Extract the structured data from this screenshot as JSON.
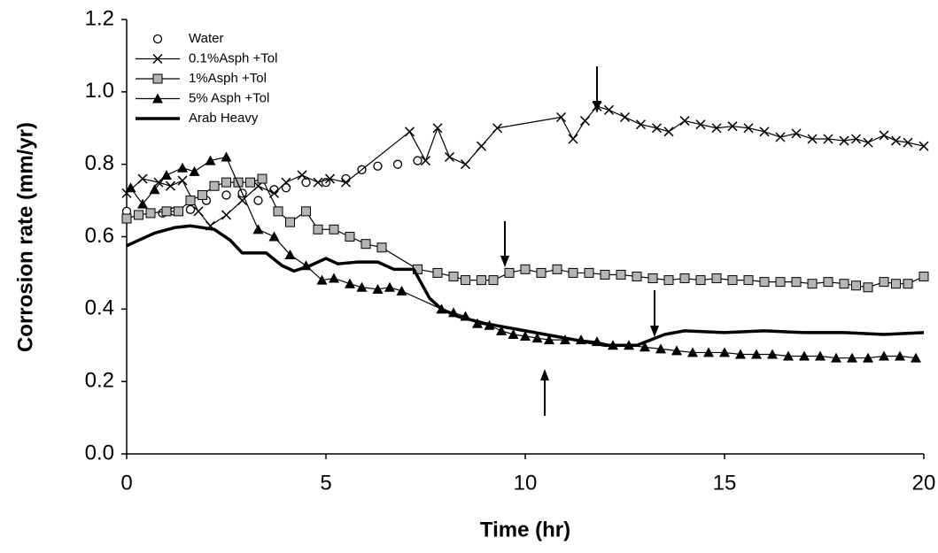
{
  "chart_data": {
    "type": "line",
    "x_label": "Time (hr)",
    "y_label": "Corrosion rate (mm/yr)",
    "xlim": [
      0,
      20
    ],
    "xticks": [
      0,
      5,
      10,
      15,
      20
    ],
    "ylim": [
      0,
      1.2
    ],
    "yticks": [
      {
        "value": 0,
        "label": "0.0"
      },
      0.2,
      0.4,
      0.6,
      0.8,
      {
        "value": 1,
        "label": "1.0"
      },
      1.2
    ],
    "grid": false,
    "legend": "upper left",
    "series": [
      {
        "name": "Water",
        "color": "#000000",
        "marker": "circle-open",
        "line": false,
        "x": [
          0,
          0.3,
          0.6,
          0.9,
          1.2,
          1.6,
          2.0,
          2.5,
          2.9,
          3.3,
          3.7,
          4.0,
          4.5,
          5.0,
          5.5,
          5.9,
          6.3,
          6.8,
          7.3
        ],
        "values": [
          0.67,
          0.66,
          0.665,
          0.665,
          0.67,
          0.675,
          0.7,
          0.715,
          0.72,
          0.7,
          0.73,
          0.735,
          0.75,
          0.75,
          0.76,
          0.785,
          0.795,
          0.8,
          0.81
        ]
      },
      {
        "name": "0.1%Asph +Tol",
        "color": "#000000",
        "marker": "x",
        "line": true,
        "x": [
          0,
          0.4,
          0.8,
          1.1,
          1.4,
          1.8,
          2.1,
          2.5,
          2.9,
          3.3,
          3.7,
          4.0,
          4.4,
          4.8,
          5.1,
          5.5,
          7.1,
          7.5,
          7.8,
          8.1,
          8.5,
          8.9,
          9.3,
          10.9,
          11.2,
          11.5,
          11.8,
          12.1,
          12.5,
          12.9,
          13.3,
          13.6,
          14.0,
          14.4,
          14.8,
          15.2,
          15.6,
          16.0,
          16.4,
          16.8,
          17.2,
          17.6,
          18.0,
          18.3,
          18.6,
          19.0,
          19.3,
          19.6,
          20
        ],
        "values": [
          0.72,
          0.76,
          0.75,
          0.74,
          0.755,
          0.67,
          0.63,
          0.66,
          0.7,
          0.74,
          0.72,
          0.75,
          0.77,
          0.75,
          0.76,
          0.75,
          0.89,
          0.81,
          0.9,
          0.82,
          0.8,
          0.85,
          0.9,
          0.93,
          0.87,
          0.92,
          0.96,
          0.95,
          0.93,
          0.91,
          0.9,
          0.89,
          0.92,
          0.91,
          0.9,
          0.905,
          0.9,
          0.89,
          0.875,
          0.885,
          0.87,
          0.87,
          0.865,
          0.87,
          0.86,
          0.88,
          0.865,
          0.86,
          0.85
        ]
      },
      {
        "name": "1%Asph +Tol",
        "color": "#000000",
        "fill": "#b4b4b4",
        "marker": "square",
        "line": true,
        "x": [
          0,
          0.3,
          0.6,
          1.0,
          1.3,
          1.6,
          1.9,
          2.2,
          2.5,
          2.8,
          3.1,
          3.4,
          3.8,
          4.1,
          4.5,
          4.8,
          5.2,
          5.6,
          6.0,
          6.4,
          7.3,
          7.8,
          8.2,
          8.5,
          8.9,
          9.2,
          9.6,
          10.0,
          10.4,
          10.8,
          11.2,
          11.6,
          12.0,
          12.4,
          12.8,
          13.2,
          13.6,
          14.0,
          14.4,
          14.8,
          15.2,
          15.6,
          16.0,
          16.4,
          16.8,
          17.2,
          17.6,
          18.0,
          18.3,
          18.6,
          19.0,
          19.3,
          19.6,
          20
        ],
        "values": [
          0.65,
          0.66,
          0.665,
          0.67,
          0.67,
          0.7,
          0.715,
          0.74,
          0.75,
          0.75,
          0.75,
          0.76,
          0.67,
          0.64,
          0.67,
          0.62,
          0.62,
          0.6,
          0.58,
          0.57,
          0.51,
          0.5,
          0.49,
          0.48,
          0.48,
          0.48,
          0.5,
          0.51,
          0.5,
          0.51,
          0.5,
          0.5,
          0.495,
          0.495,
          0.49,
          0.485,
          0.48,
          0.485,
          0.48,
          0.485,
          0.48,
          0.48,
          0.475,
          0.475,
          0.475,
          0.47,
          0.475,
          0.47,
          0.465,
          0.46,
          0.475,
          0.47,
          0.47,
          0.49
        ]
      },
      {
        "name": "5% Asph +Tol",
        "color": "#000000",
        "marker": "triangle",
        "line": true,
        "x": [
          0.1,
          0.4,
          0.7,
          1.0,
          1.4,
          1.7,
          2.1,
          2.5,
          3.3,
          3.7,
          4.1,
          4.5,
          4.9,
          5.2,
          5.6,
          5.9,
          6.3,
          6.6,
          6.9,
          7.9,
          8.2,
          8.5,
          8.8,
          9.1,
          9.4,
          9.7,
          10.0,
          10.3,
          10.6,
          11.0,
          11.4,
          11.8,
          12.2,
          12.6,
          13.0,
          13.4,
          13.8,
          14.2,
          14.6,
          15.0,
          15.4,
          15.8,
          16.2,
          16.6,
          17.0,
          17.4,
          17.8,
          18.2,
          18.6,
          19.0,
          19.4,
          19.8
        ],
        "values": [
          0.735,
          0.69,
          0.73,
          0.77,
          0.79,
          0.78,
          0.81,
          0.82,
          0.62,
          0.6,
          0.55,
          0.52,
          0.48,
          0.485,
          0.47,
          0.46,
          0.455,
          0.46,
          0.45,
          0.4,
          0.39,
          0.38,
          0.36,
          0.355,
          0.34,
          0.33,
          0.325,
          0.32,
          0.315,
          0.315,
          0.315,
          0.31,
          0.3,
          0.3,
          0.295,
          0.29,
          0.285,
          0.28,
          0.28,
          0.28,
          0.275,
          0.275,
          0.275,
          0.27,
          0.27,
          0.27,
          0.265,
          0.265,
          0.265,
          0.27,
          0.27,
          0.265
        ]
      },
      {
        "name": "Arab Heavy",
        "color": "#000000",
        "marker": "none",
        "line": true,
        "width": 3.5,
        "x": [
          0,
          0.3,
          0.7,
          1.2,
          1.6,
          2.2,
          2.6,
          2.9,
          3.5,
          3.9,
          4.2,
          4.6,
          5.0,
          5.3,
          5.8,
          6.3,
          6.7,
          7.2,
          7.6,
          7.9,
          8.3,
          9.0,
          10,
          11,
          12,
          12.8,
          13.5,
          14,
          15,
          16,
          17,
          18,
          19,
          20
        ],
        "values": [
          0.575,
          0.59,
          0.61,
          0.625,
          0.63,
          0.62,
          0.59,
          0.555,
          0.555,
          0.52,
          0.505,
          0.52,
          0.54,
          0.525,
          0.53,
          0.53,
          0.51,
          0.51,
          0.43,
          0.4,
          0.38,
          0.36,
          0.34,
          0.32,
          0.3,
          0.3,
          0.33,
          0.34,
          0.335,
          0.34,
          0.335,
          0.335,
          0.33,
          0.335
        ]
      }
    ]
  }
}
